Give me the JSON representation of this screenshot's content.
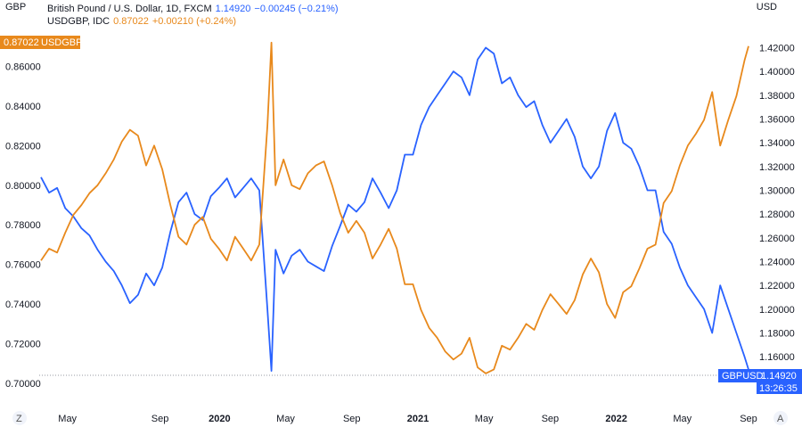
{
  "header": {
    "left_unit": "GBP",
    "right_unit": "USD",
    "line1_symbol": "British Pound / U.S. Dollar, 1D, FXCM",
    "line1_value": "1.14920",
    "line1_change": "−0.00245 (−0.21%)",
    "line2_symbol": "USDGBP, IDC",
    "line2_value": "0.87022",
    "line2_change": "+0.00210 (+0.24%)"
  },
  "badges": {
    "usdgbp_value": "0.87022",
    "usdgbp_label": "USDGBP",
    "gbpusd_label": "GBPUSD",
    "gbpusd_value": "1.14920",
    "gbpusd_time": "13:26:35"
  },
  "nav": {
    "left": "Z",
    "right": "A"
  },
  "colors": {
    "gbpusd": "#2962ff",
    "usdgbp": "#e8891c"
  },
  "chart_data": {
    "type": "line",
    "left_axis": {
      "label": "GBP",
      "ylim": [
        0.7,
        0.88
      ],
      "ticks": [
        "0.70000",
        "0.72000",
        "0.74000",
        "0.76000",
        "0.78000",
        "0.80000",
        "0.82000",
        "0.84000",
        "0.86000"
      ]
    },
    "right_axis": {
      "label": "USD",
      "ylim": [
        1.1376,
        1.4376
      ],
      "ticks": [
        "1.16000",
        "1.18000",
        "1.20000",
        "1.22000",
        "1.24000",
        "1.26000",
        "1.28000",
        "1.30000",
        "1.32000",
        "1.34000",
        "1.36000",
        "1.38000",
        "1.40000",
        "1.42000"
      ]
    },
    "x_ticks": [
      {
        "label": "May",
        "t": 0.04,
        "bold": false
      },
      {
        "label": "Sep",
        "t": 0.18,
        "bold": false
      },
      {
        "label": "2020",
        "t": 0.27,
        "bold": true
      },
      {
        "label": "May",
        "t": 0.37,
        "bold": false
      },
      {
        "label": "Sep",
        "t": 0.47,
        "bold": false
      },
      {
        "label": "2021",
        "t": 0.57,
        "bold": true
      },
      {
        "label": "May",
        "t": 0.67,
        "bold": false
      },
      {
        "label": "Sep",
        "t": 0.77,
        "bold": false
      },
      {
        "label": "2022",
        "t": 0.87,
        "bold": true
      },
      {
        "label": "May",
        "t": 0.97,
        "bold": false
      },
      {
        "label": "Sep",
        "t": 1.07,
        "bold": false
      }
    ],
    "series": [
      {
        "name": "GBPUSD",
        "axis": "right",
        "color": "#2962ff",
        "points": [
          [
            0.0,
            1.311
          ],
          [
            0.01,
            1.298
          ],
          [
            0.02,
            1.302
          ],
          [
            0.03,
            1.285
          ],
          [
            0.04,
            1.278
          ],
          [
            0.05,
            1.268
          ],
          [
            0.06,
            1.262
          ],
          [
            0.07,
            1.25
          ],
          [
            0.08,
            1.24
          ],
          [
            0.09,
            1.232
          ],
          [
            0.1,
            1.22
          ],
          [
            0.11,
            1.205
          ],
          [
            0.12,
            1.212
          ],
          [
            0.13,
            1.23
          ],
          [
            0.14,
            1.22
          ],
          [
            0.15,
            1.235
          ],
          [
            0.16,
            1.265
          ],
          [
            0.17,
            1.29
          ],
          [
            0.18,
            1.298
          ],
          [
            0.19,
            1.28
          ],
          [
            0.2,
            1.275
          ],
          [
            0.21,
            1.295
          ],
          [
            0.22,
            1.302
          ],
          [
            0.23,
            1.31
          ],
          [
            0.24,
            1.294
          ],
          [
            0.25,
            1.302
          ],
          [
            0.26,
            1.31
          ],
          [
            0.27,
            1.3
          ],
          [
            0.28,
            1.2
          ],
          [
            0.285,
            1.148
          ],
          [
            0.29,
            1.25
          ],
          [
            0.3,
            1.23
          ],
          [
            0.31,
            1.245
          ],
          [
            0.32,
            1.25
          ],
          [
            0.33,
            1.24
          ],
          [
            0.34,
            1.236
          ],
          [
            0.35,
            1.232
          ],
          [
            0.36,
            1.253
          ],
          [
            0.37,
            1.27
          ],
          [
            0.38,
            1.288
          ],
          [
            0.39,
            1.282
          ],
          [
            0.4,
            1.29
          ],
          [
            0.41,
            1.31
          ],
          [
            0.42,
            1.298
          ],
          [
            0.43,
            1.285
          ],
          [
            0.44,
            1.3
          ],
          [
            0.45,
            1.33
          ],
          [
            0.46,
            1.33
          ],
          [
            0.47,
            1.355
          ],
          [
            0.48,
            1.37
          ],
          [
            0.49,
            1.38
          ],
          [
            0.5,
            1.39
          ],
          [
            0.51,
            1.4
          ],
          [
            0.52,
            1.395
          ],
          [
            0.53,
            1.38
          ],
          [
            0.54,
            1.41
          ],
          [
            0.55,
            1.42
          ],
          [
            0.56,
            1.415
          ],
          [
            0.57,
            1.39
          ],
          [
            0.58,
            1.395
          ],
          [
            0.59,
            1.38
          ],
          [
            0.6,
            1.37
          ],
          [
            0.61,
            1.375
          ],
          [
            0.62,
            1.355
          ],
          [
            0.63,
            1.34
          ],
          [
            0.64,
            1.35
          ],
          [
            0.65,
            1.36
          ],
          [
            0.66,
            1.345
          ],
          [
            0.67,
            1.32
          ],
          [
            0.68,
            1.31
          ],
          [
            0.69,
            1.32
          ],
          [
            0.7,
            1.35
          ],
          [
            0.71,
            1.365
          ],
          [
            0.72,
            1.34
          ],
          [
            0.73,
            1.335
          ],
          [
            0.74,
            1.32
          ],
          [
            0.75,
            1.3
          ],
          [
            0.76,
            1.3
          ],
          [
            0.77,
            1.265
          ],
          [
            0.78,
            1.255
          ],
          [
            0.79,
            1.235
          ],
          [
            0.8,
            1.22
          ],
          [
            0.81,
            1.21
          ],
          [
            0.82,
            1.2
          ],
          [
            0.83,
            1.18
          ],
          [
            0.84,
            1.22
          ],
          [
            0.85,
            1.2
          ],
          [
            0.86,
            1.18
          ],
          [
            0.87,
            1.16
          ],
          [
            0.875,
            1.1492
          ]
        ]
      },
      {
        "name": "USDGBP",
        "axis": "left",
        "color": "#e8891c",
        "points": [
          [
            0.0,
            0.762
          ],
          [
            0.01,
            0.768
          ],
          [
            0.02,
            0.766
          ],
          [
            0.03,
            0.776
          ],
          [
            0.04,
            0.785
          ],
          [
            0.05,
            0.79
          ],
          [
            0.06,
            0.796
          ],
          [
            0.07,
            0.8
          ],
          [
            0.08,
            0.806
          ],
          [
            0.09,
            0.813
          ],
          [
            0.1,
            0.822
          ],
          [
            0.11,
            0.828
          ],
          [
            0.12,
            0.825
          ],
          [
            0.13,
            0.81
          ],
          [
            0.14,
            0.82
          ],
          [
            0.15,
            0.808
          ],
          [
            0.16,
            0.79
          ],
          [
            0.17,
            0.774
          ],
          [
            0.18,
            0.77
          ],
          [
            0.19,
            0.78
          ],
          [
            0.2,
            0.784
          ],
          [
            0.21,
            0.773
          ],
          [
            0.22,
            0.768
          ],
          [
            0.23,
            0.762
          ],
          [
            0.24,
            0.774
          ],
          [
            0.25,
            0.768
          ],
          [
            0.26,
            0.762
          ],
          [
            0.27,
            0.77
          ],
          [
            0.28,
            0.83
          ],
          [
            0.285,
            0.872
          ],
          [
            0.29,
            0.8
          ],
          [
            0.3,
            0.813
          ],
          [
            0.31,
            0.8
          ],
          [
            0.32,
            0.798
          ],
          [
            0.33,
            0.806
          ],
          [
            0.34,
            0.81
          ],
          [
            0.35,
            0.812
          ],
          [
            0.36,
            0.8
          ],
          [
            0.37,
            0.786
          ],
          [
            0.38,
            0.776
          ],
          [
            0.39,
            0.782
          ],
          [
            0.4,
            0.776
          ],
          [
            0.41,
            0.763
          ],
          [
            0.42,
            0.77
          ],
          [
            0.43,
            0.778
          ],
          [
            0.44,
            0.768
          ],
          [
            0.45,
            0.75
          ],
          [
            0.46,
            0.75
          ],
          [
            0.47,
            0.737
          ],
          [
            0.48,
            0.728
          ],
          [
            0.49,
            0.723
          ],
          [
            0.5,
            0.716
          ],
          [
            0.51,
            0.712
          ],
          [
            0.52,
            0.715
          ],
          [
            0.53,
            0.723
          ],
          [
            0.54,
            0.708
          ],
          [
            0.55,
            0.705
          ],
          [
            0.56,
            0.707
          ],
          [
            0.57,
            0.719
          ],
          [
            0.58,
            0.717
          ],
          [
            0.59,
            0.723
          ],
          [
            0.6,
            0.73
          ],
          [
            0.61,
            0.727
          ],
          [
            0.62,
            0.737
          ],
          [
            0.63,
            0.745
          ],
          [
            0.64,
            0.74
          ],
          [
            0.65,
            0.735
          ],
          [
            0.66,
            0.742
          ],
          [
            0.67,
            0.755
          ],
          [
            0.68,
            0.763
          ],
          [
            0.69,
            0.756
          ],
          [
            0.7,
            0.74
          ],
          [
            0.71,
            0.733
          ],
          [
            0.72,
            0.746
          ],
          [
            0.73,
            0.749
          ],
          [
            0.74,
            0.758
          ],
          [
            0.75,
            0.768
          ],
          [
            0.76,
            0.77
          ],
          [
            0.77,
            0.791
          ],
          [
            0.78,
            0.797
          ],
          [
            0.79,
            0.81
          ],
          [
            0.8,
            0.82
          ],
          [
            0.81,
            0.826
          ],
          [
            0.82,
            0.833
          ],
          [
            0.83,
            0.847
          ],
          [
            0.84,
            0.82
          ],
          [
            0.85,
            0.833
          ],
          [
            0.86,
            0.845
          ],
          [
            0.87,
            0.863
          ],
          [
            0.875,
            0.87022
          ]
        ]
      }
    ]
  }
}
